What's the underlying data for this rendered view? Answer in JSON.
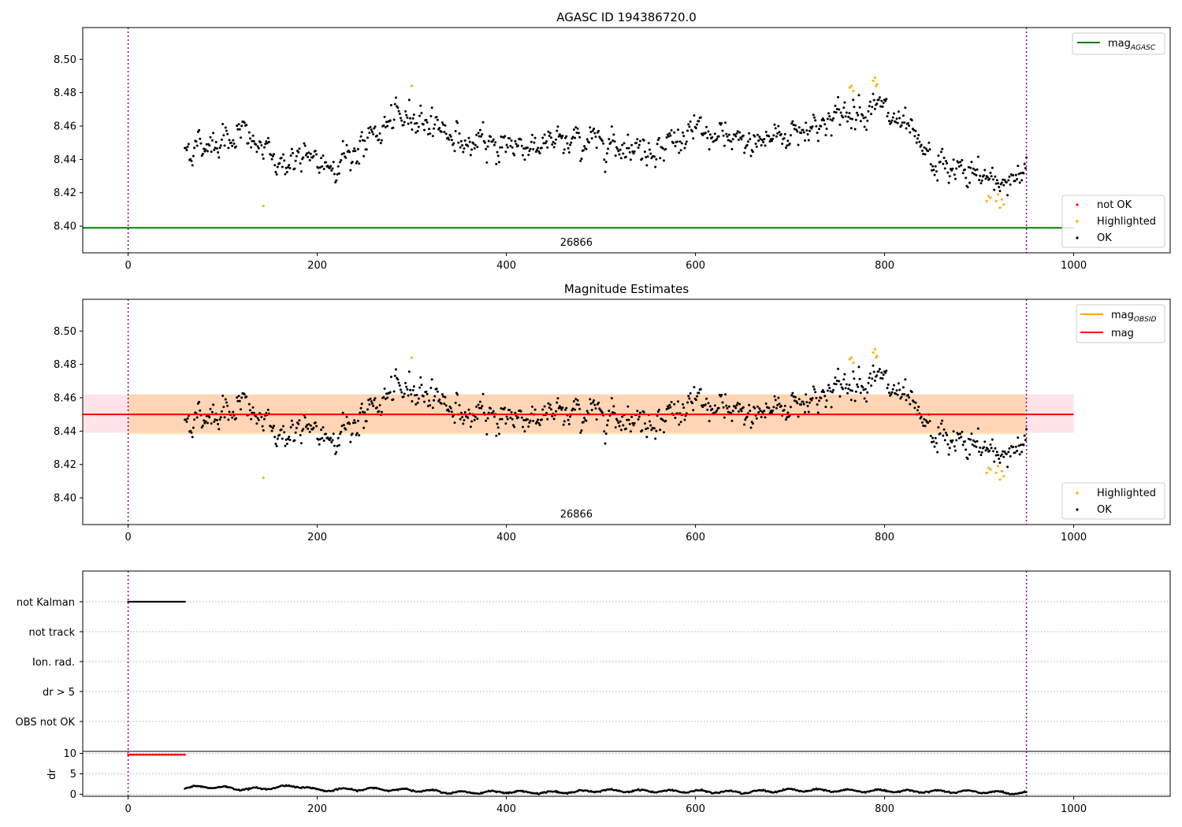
{
  "chart_data": [
    {
      "type": "scatter",
      "title": "AGASC ID 194386720.0",
      "xlim": [
        -48,
        1102
      ],
      "ylim": [
        8.384,
        8.519
      ],
      "xticks": [
        0,
        200,
        400,
        600,
        800,
        1000
      ],
      "yticks": [
        8.4,
        8.42,
        8.44,
        8.46,
        8.48,
        8.5
      ],
      "ytick_labels": [
        "8.40",
        "8.42",
        "8.44",
        "8.46",
        "8.48",
        "8.50"
      ],
      "obsid_label": "26866",
      "obsid_label_x": 474,
      "obs_boundaries": [
        0,
        950
      ],
      "mag_agasc": 8.399,
      "legend_upper": [
        {
          "label": "mag",
          "sub": "AGASC",
          "color": "#008000"
        }
      ],
      "legend_lower": [
        {
          "label": "not OK",
          "color": "#ff0000"
        },
        {
          "label": "Highlighted",
          "color": "#ffa500"
        },
        {
          "label": "OK",
          "color": "#000000"
        }
      ],
      "series": [
        {
          "name": "OK",
          "color": "#000000",
          "x_range": [
            60,
            950
          ],
          "n_points": 890,
          "mag_profile_x": [
            60,
            80,
            120,
            140,
            160,
            180,
            210,
            240,
            270,
            300,
            330,
            360,
            400,
            450,
            500,
            550,
            600,
            650,
            700,
            740,
            770,
            790,
            810,
            830,
            850,
            870,
            900,
            920,
            950
          ],
          "mag_profile_y": [
            8.446,
            8.449,
            8.456,
            8.446,
            8.438,
            8.44,
            8.437,
            8.444,
            8.459,
            8.467,
            8.46,
            8.448,
            8.449,
            8.449,
            8.452,
            8.446,
            8.456,
            8.449,
            8.456,
            8.463,
            8.47,
            8.473,
            8.463,
            8.452,
            8.437,
            8.434,
            8.43,
            8.426,
            8.433
          ]
        },
        {
          "name": "Highlighted",
          "color": "#ffa500",
          "x": [
            143,
            300,
            763,
            765,
            767,
            788,
            790,
            792,
            791,
            908,
            910,
            912,
            918,
            920,
            922,
            924,
            926
          ],
          "y": [
            8.412,
            8.484,
            8.483,
            8.484,
            8.481,
            8.487,
            8.489,
            8.485,
            8.484,
            8.415,
            8.418,
            8.417,
            8.415,
            8.419,
            8.411,
            8.416,
            8.413
          ]
        }
      ]
    },
    {
      "type": "scatter",
      "title": "Magnitude Estimates",
      "xlim": [
        -48,
        1102
      ],
      "ylim": [
        8.384,
        8.519
      ],
      "xticks": [
        0,
        200,
        400,
        600,
        800,
        1000
      ],
      "yticks": [
        8.4,
        8.42,
        8.44,
        8.46,
        8.48,
        8.5
      ],
      "ytick_labels": [
        "8.40",
        "8.42",
        "8.44",
        "8.46",
        "8.48",
        "8.50"
      ],
      "obsid_label": "26866",
      "obsid_label_x": 474,
      "obs_boundaries": [
        0,
        950
      ],
      "mag": 8.45,
      "mag_band": [
        8.439,
        8.462
      ],
      "mag_band_x": [
        -48,
        1000
      ],
      "mag_obsid": 8.45,
      "mag_obsid_band": [
        8.438,
        8.462
      ],
      "mag_obsid_band_x": [
        0,
        950
      ],
      "legend_upper": [
        {
          "label": "mag",
          "sub": "OBSID",
          "color": "#ffa500"
        },
        {
          "label": "mag",
          "sub": "",
          "color": "#ff0000"
        }
      ],
      "legend_lower": [
        {
          "label": "Highlighted",
          "color": "#ffa500"
        },
        {
          "label": "OK",
          "color": "#000000"
        }
      ],
      "series": [
        {
          "name": "OK",
          "color": "#000000",
          "same_as_panel": 1
        },
        {
          "name": "Highlighted",
          "color": "#ffa500",
          "same_as_panel": 1
        }
      ]
    },
    {
      "type": "scatter",
      "title": "",
      "xlim": [
        -48,
        1102
      ],
      "flag_labels": [
        "not Kalman",
        "not track",
        "Ion. rad.",
        "dr > 5",
        "OBS not OK"
      ],
      "obs_boundaries": [
        0,
        950
      ],
      "series": [
        {
          "name": "not Kalman",
          "color": "#000000",
          "x_range": [
            0,
            60
          ]
        }
      ]
    },
    {
      "type": "scatter",
      "title": "",
      "xlim": [
        -48,
        1102
      ],
      "ylim": [
        -0.5,
        10.5
      ],
      "ylabel": "dr",
      "yticks": [
        0,
        5,
        10
      ],
      "xticks": [
        0,
        200,
        400,
        600,
        800,
        1000
      ],
      "obs_boundaries": [
        0,
        950
      ],
      "series": [
        {
          "name": "dr not OK",
          "color": "#ff0000",
          "x_range": [
            0,
            60
          ],
          "value": 9.7
        },
        {
          "name": "dr",
          "color": "#000000",
          "x_range": [
            60,
            950
          ],
          "profile_x": [
            60,
            80,
            130,
            180,
            200,
            260,
            300,
            350,
            400,
            450,
            500,
            600,
            650,
            700,
            800,
            900,
            950
          ],
          "profile_y": [
            1.5,
            1.9,
            1.2,
            2.1,
            1.0,
            1.3,
            1.0,
            0.4,
            0.6,
            0.4,
            0.9,
            0.7,
            0.5,
            1.0,
            0.8,
            0.6,
            0.2
          ]
        }
      ]
    }
  ]
}
